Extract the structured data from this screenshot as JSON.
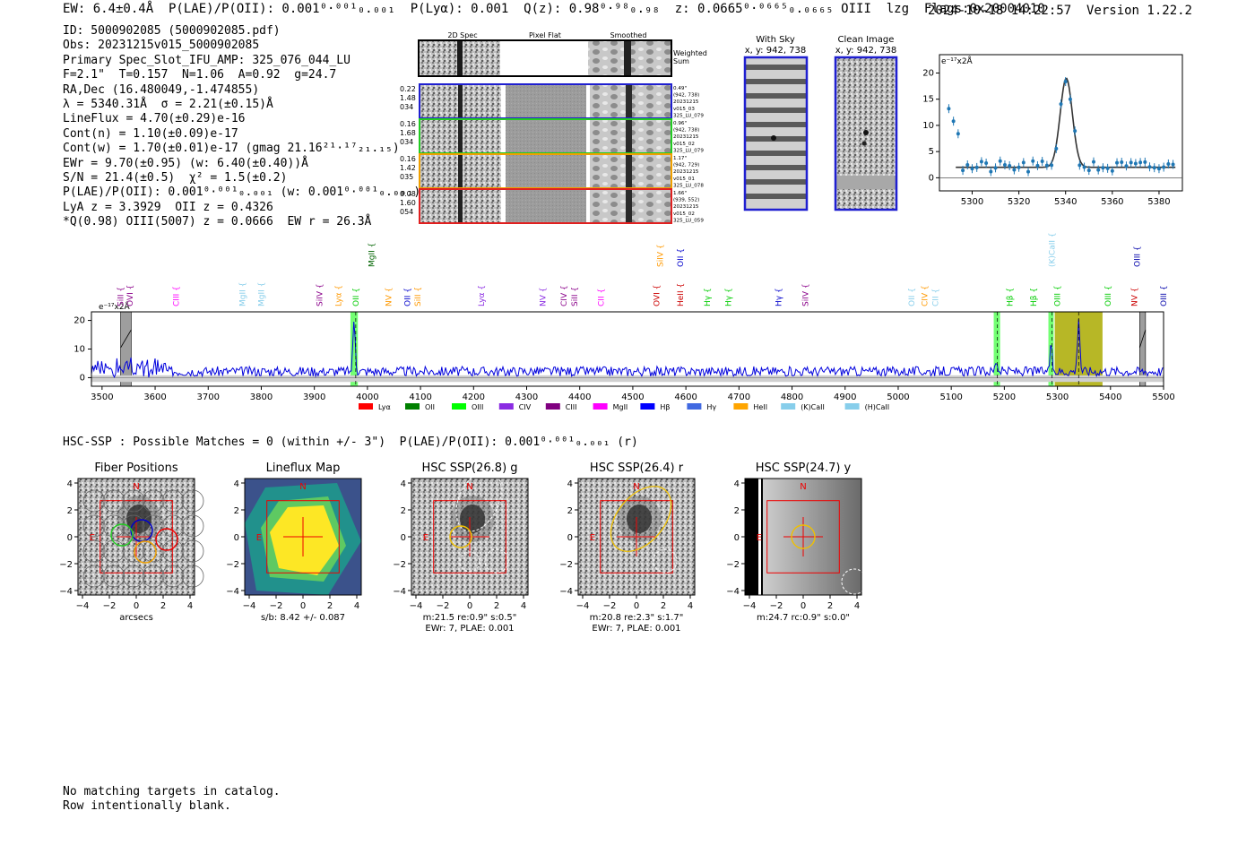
{
  "header": {
    "line": "EW: 6.4±0.4Å  P(LAE)/P(OII): 0.001⁰·⁰⁰¹₀.₀₀₁  P(Lyα): 0.001  Q(z): 0.98⁰·⁹⁸₀.₉₈  z: 0.0665⁰·⁰⁶⁶⁵₀.₀₆₆₅ OIII  lzg  Flags:0x20004010",
    "datestamp": "2024-10-18 14:22:57  Version 1.22.2"
  },
  "info": [
    "ID: 5000902085 (5000902085.pdf)",
    "Obs: 20231215v015_5000902085",
    "Primary Spec_Slot_IFU_AMP: 325_076_044_LU",
    "F=2.1\"  T=0.157  N=1.06  A=0.92  g=24.7",
    "RA,Dec (16.480049,-1.474855)",
    "λ = 5340.31Å  σ = 2.21(±0.15)Å",
    "LineFlux = 4.70(±0.29)e-16",
    "Cont(n) = 1.10(±0.09)e-17",
    "Cont(w) = 1.70(±0.01)e-17 (gmag 21.16²¹·¹⁷₂₁.₁₅)",
    "EWr = 9.70(±0.95) (w: 6.40(±0.40))Å",
    "S/N = 21.4(±0.5)  χ² = 1.5(±0.2)",
    "P(LAE)/P(OII): 0.001⁰·⁰⁰¹₀.₀₀₁ (w: 0.001⁰·⁰⁰¹₀.₀₀₁)",
    "LyA z = 3.3929  OII z = 0.4326",
    "*Q(0.98) OIII(5007) z = 0.0666  EW r = 26.3Å"
  ],
  "cutouts": {
    "col_titles": [
      "2D Spec",
      "Pixel Flat",
      "Smoothed"
    ],
    "weighted_label": [
      "Weighted",
      "Sum"
    ],
    "rows": [
      {
        "left": [
          "0.22",
          "1.48",
          "034"
        ],
        "right": [
          "0.49\"",
          "(942, 738)",
          "20231215",
          "v015_03",
          "325_LU_079"
        ],
        "color": "#1f1fd0"
      },
      {
        "left": [
          "0.16",
          "1.68",
          "034"
        ],
        "right": [
          "0.96\"",
          "(942, 738)",
          "20231215",
          "v015_02",
          "325_LU_079"
        ],
        "color": "#22cc22"
      },
      {
        "left": [
          "0.16",
          "1.42",
          "035"
        ],
        "right": [
          "1.17\"",
          "(942, 729)",
          "20231215",
          "v015_01",
          "325_LU_078"
        ],
        "color": "#f0a000"
      },
      {
        "left": [
          "0.08",
          "1.60",
          "054"
        ],
        "right": [
          "1.66\"",
          "(939, 552)",
          "20231215",
          "v015_02",
          "325_LU_059"
        ],
        "color": "#e02020"
      }
    ],
    "with_sky": [
      "With Sky",
      "x, y: 942, 738"
    ],
    "clean_image": [
      "Clean Image",
      "x, y: 942, 738"
    ]
  },
  "zoom_plot": {
    "ylabel": "e⁻¹⁷x2Å",
    "x_ticks": [
      5300,
      5320,
      5340,
      5360,
      5380
    ],
    "y_ticks": [
      0,
      5,
      10,
      15,
      20
    ],
    "xlim": [
      5286,
      5390
    ],
    "ylim": [
      -2.5,
      23.5
    ]
  },
  "chart_data": {
    "type": "line",
    "title": "",
    "ylabel": "e⁻¹⁷x2Å",
    "xlim": [
      3480,
      5500
    ],
    "ylim": [
      -3,
      23
    ],
    "x_ticks": [
      3500,
      3600,
      3700,
      3800,
      3900,
      4000,
      4100,
      4200,
      4300,
      4400,
      4500,
      4600,
      4700,
      4800,
      4900,
      5000,
      5100,
      5200,
      5300,
      5400,
      5500
    ],
    "y_ticks": [
      0,
      10,
      20
    ],
    "peaks": [
      {
        "x": 3975,
        "y": 20
      },
      {
        "x": 5185,
        "y": 6
      },
      {
        "x": 5288,
        "y": 10
      },
      {
        "x": 5340,
        "y": 21
      }
    ],
    "highlight_bands": [
      {
        "x0": 3968,
        "x1": 3982,
        "color": "#00ff00"
      },
      {
        "x0": 5180,
        "x1": 5192,
        "color": "#00ff00"
      },
      {
        "x0": 5283,
        "x1": 5293,
        "color": "#00ff00"
      },
      {
        "x0": 5295,
        "x1": 5385,
        "color": "#aaaa00"
      }
    ],
    "line_labels": [
      {
        "x": 3535,
        "name": "SiII",
        "color": "#8a008a",
        "row": 1
      },
      {
        "x": 3553,
        "name": "OVI",
        "color": "#8a008a",
        "row": 1
      },
      {
        "x": 3640,
        "name": "CIII",
        "color": "#ff00ff",
        "row": 1
      },
      {
        "x": 3765,
        "name": "MgII",
        "color": "#87ceeb",
        "row": 1
      },
      {
        "x": 3800,
        "name": "MgII",
        "color": "#87ceeb",
        "row": 1
      },
      {
        "x": 3910,
        "name": "SiIV",
        "color": "#8a008a",
        "row": 1
      },
      {
        "x": 3945,
        "name": "Lyα",
        "color": "#ff9900",
        "row": 1
      },
      {
        "x": 3978,
        "name": "OII",
        "color": "#00cc00",
        "row": 1
      },
      {
        "x": 4008,
        "name": "MgII",
        "color": "#006400",
        "row": 0
      },
      {
        "x": 4040,
        "name": "NV",
        "color": "#ff9900",
        "row": 1
      },
      {
        "x": 4075,
        "name": "OII",
        "color": "#0000cc",
        "row": 1
      },
      {
        "x": 4095,
        "name": "SiII",
        "color": "#ff9900",
        "row": 1
      },
      {
        "x": 4215,
        "name": "Lyα",
        "color": "#8a2be2",
        "row": 1
      },
      {
        "x": 4330,
        "name": "NV",
        "color": "#8a2be2",
        "row": 1
      },
      {
        "x": 4370,
        "name": "CIV",
        "color": "#8a008a",
        "row": 1
      },
      {
        "x": 4390,
        "name": "SiII",
        "color": "#8a008a",
        "row": 1
      },
      {
        "x": 4440,
        "name": "CII",
        "color": "#ff00ff",
        "row": 1
      },
      {
        "x": 4545,
        "name": "OVI",
        "color": "#cc0000",
        "row": 1
      },
      {
        "x": 4552,
        "name": "SiIV",
        "color": "#ff9900",
        "row": 0
      },
      {
        "x": 4590,
        "name": "OII",
        "color": "#0000cc",
        "row": 0
      },
      {
        "x": 4590,
        "name": "HeII",
        "color": "#cc0000",
        "row": 1
      },
      {
        "x": 4640,
        "name": "Hγ",
        "color": "#00cc00",
        "row": 1
      },
      {
        "x": 4680,
        "name": "Hγ",
        "color": "#00cc00",
        "row": 1
      },
      {
        "x": 4775,
        "name": "Hγ",
        "color": "#0000cc",
        "row": 1
      },
      {
        "x": 4825,
        "name": "SiIV",
        "color": "#8a008a",
        "row": 1
      },
      {
        "x": 5025,
        "name": "OII",
        "color": "#87ceeb",
        "row": 1
      },
      {
        "x": 5050,
        "name": "CIV",
        "color": "#ff9900",
        "row": 1
      },
      {
        "x": 5070,
        "name": "CII",
        "color": "#87ceeb",
        "row": 1
      },
      {
        "x": 5210,
        "name": "Hβ",
        "color": "#00cc00",
        "row": 1
      },
      {
        "x": 5255,
        "name": "Hβ",
        "color": "#00cc00",
        "row": 1
      },
      {
        "x": 5290,
        "name": "(K)CaII",
        "color": "#87ceeb",
        "row": 0
      },
      {
        "x": 5300,
        "name": "OIII",
        "color": "#00cc00",
        "row": 1
      },
      {
        "x": 5395,
        "name": "OIII",
        "color": "#00cc00",
        "row": 1
      },
      {
        "x": 5445,
        "name": "NV",
        "color": "#cc0000",
        "row": 1
      },
      {
        "x": 5450,
        "name": "OIII",
        "color": "#0000aa",
        "row": 0
      },
      {
        "x": 5500,
        "name": "OIII",
        "color": "#0000aa",
        "row": 1
      }
    ],
    "legend": [
      {
        "label": "Lyα",
        "color": "#ff0000"
      },
      {
        "label": "OII",
        "color": "#008000"
      },
      {
        "label": "OIII",
        "color": "#00ff00"
      },
      {
        "label": "CIV",
        "color": "#8a2be2"
      },
      {
        "label": "CIII",
        "color": "#800080"
      },
      {
        "label": "MgII",
        "color": "#ff00ff"
      },
      {
        "label": "Hβ",
        "color": "#0000ff"
      },
      {
        "label": "Hγ",
        "color": "#4169e1"
      },
      {
        "label": "HeII",
        "color": "#ffa500"
      },
      {
        "label": "(K)CaII",
        "color": "#87ceeb"
      },
      {
        "label": "(H)CaII",
        "color": "#87ceeb"
      }
    ]
  },
  "hsc": {
    "title": "HSC-SSP : Possible Matches = 0 (within +/- 3\")  P(LAE)/P(OII): 0.001⁰·⁰⁰¹₀.₀₀₁ (r)",
    "panels": [
      {
        "title": "Fiber Positions",
        "captions": [
          "arcsecs"
        ]
      },
      {
        "title": "Lineflux Map",
        "captions": [
          "s/b: 8.42 +/- 0.087"
        ]
      },
      {
        "title": "HSC SSP(26.8) g",
        "captions": [
          "m:21.5  re:0.9\"  s:0.5\"",
          "EWr: 7, PLAE: 0.001"
        ]
      },
      {
        "title": "HSC SSP(26.4) r",
        "captions": [
          "m:20.8  re:2.3\"  s:1.7\"",
          "EWr: 7, PLAE: 0.001"
        ]
      },
      {
        "title": "HSC SSP(24.7) y",
        "captions": [
          "m:24.7 rc:0.9\"  s:0.0\""
        ]
      }
    ],
    "axis_ticks": [
      "4",
      "2",
      "0",
      "−2",
      "−4"
    ],
    "x_ticks": [
      "−4",
      "−2",
      "0",
      "2",
      "4"
    ],
    "north_label": "N",
    "east_label": "E"
  },
  "catalog": [
    "No matching targets in catalog.",
    "Row intentionally blank."
  ]
}
